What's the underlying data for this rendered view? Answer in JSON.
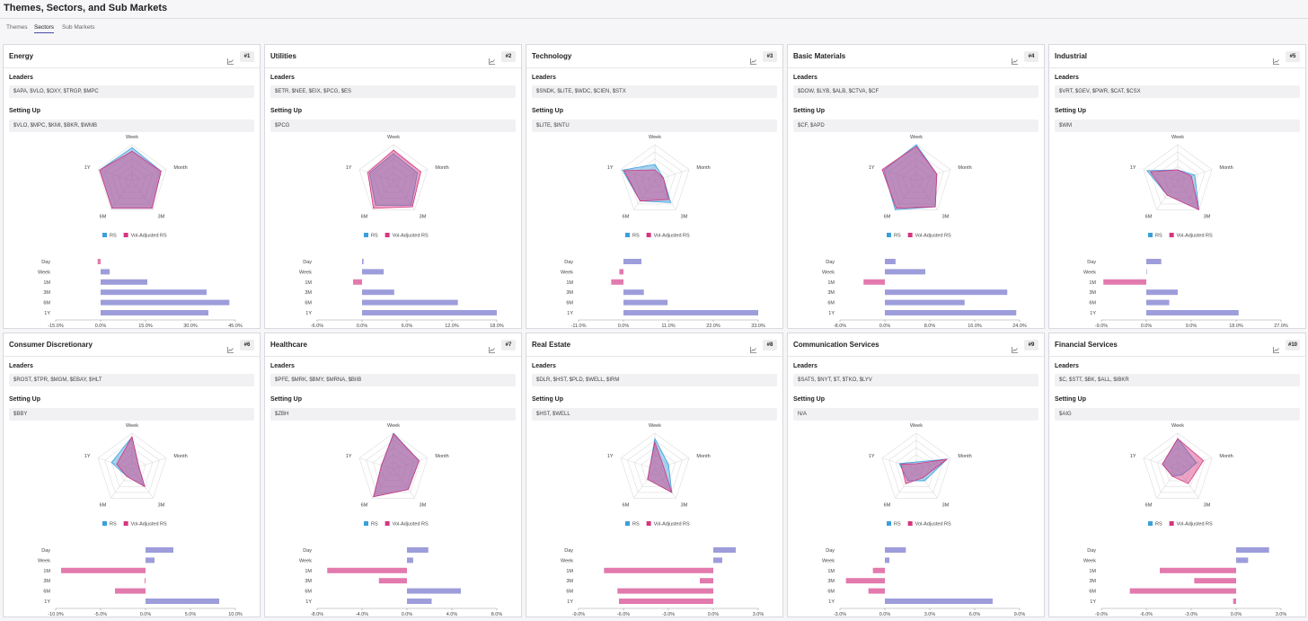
{
  "header": {
    "title": "Themes, Sectors, and Sub Markets"
  },
  "tabs": [
    "Themes",
    "Sectors",
    "Sub Markets"
  ],
  "active_tab": 1,
  "cards": [
    {
      "title": "Energy",
      "rank": "#1",
      "leaders_label": "Leaders",
      "leaders": "$APA, $VLO, $OXY, $TRGP, $MPC",
      "setup_label": "Setting Up",
      "setup": "$VLO, $MPC, $KMI, $BKR, $WMB",
      "charts": [
        {
          "type": "radar",
          "axes": [
            "Week",
            "Month",
            "3M",
            "6M",
            "1Y"
          ],
          "rlim": [
            0,
            100
          ],
          "series": [
            {
              "name": "RS",
              "color": "#3aa0dc",
              "values": [
                92,
                85,
                95,
                95,
                95
              ]
            },
            {
              "name": "Vol-Adjusted RS",
              "color": "#d6357f",
              "values": [
                82,
                85,
                95,
                95,
                95
              ]
            }
          ]
        },
        {
          "type": "bar",
          "categories": [
            "Day",
            "Week",
            "1M",
            "3M",
            "6M",
            "1Y"
          ],
          "values": [
            -1,
            3,
            15.6,
            35.4,
            43,
            36
          ],
          "xlim": [
            -15,
            45
          ],
          "xticks": [
            {
              "value": -15,
              "label": "-15.0%"
            },
            {
              "value": 0,
              "label": "0.0%"
            },
            {
              "value": 15,
              "label": "15.0%"
            },
            {
              "value": 30,
              "label": "30.0%"
            },
            {
              "value": 45,
              "label": "45.0%"
            }
          ],
          "positive_color": "#9d9ddb",
          "negative_color": "#e27aae"
        }
      ]
    },
    {
      "title": "Utilities",
      "rank": "#2",
      "leaders_label": "Leaders",
      "leaders": "$ETR, $NEE, $EIX, $PCG, $ES",
      "setup_label": "Setting Up",
      "setup": "$PCG",
      "charts": [
        {
          "type": "radar",
          "axes": [
            "Week",
            "Month",
            "3M",
            "6M",
            "1Y"
          ],
          "rlim": [
            0,
            100
          ],
          "series": [
            {
              "name": "RS",
              "color": "#3aa0dc",
              "values": [
                75,
                70,
                85,
                85,
                70
              ]
            },
            {
              "name": "Vol-Adjusted RS",
              "color": "#d6357f",
              "values": [
                85,
                80,
                90,
                95,
                75
              ]
            }
          ]
        },
        {
          "type": "bar",
          "categories": [
            "Day",
            "Week",
            "1M",
            "3M",
            "6M",
            "1Y"
          ],
          "values": [
            0.2,
            2.9,
            -1.2,
            4.3,
            12.8,
            18
          ],
          "xlim": [
            -6,
            18
          ],
          "xticks": [
            {
              "value": -6,
              "label": "-6.0%"
            },
            {
              "value": 0,
              "label": "0.0%"
            },
            {
              "value": 6,
              "label": "6.0%"
            },
            {
              "value": 12,
              "label": "12.0%"
            },
            {
              "value": 18,
              "label": "18.0%"
            }
          ],
          "positive_color": "#9d9ddb",
          "negative_color": "#e27aae"
        }
      ]
    },
    {
      "title": "Technology",
      "rank": "#3",
      "leaders_label": "Leaders",
      "leaders": "$SNDK, $LITE, $WDC, $CIEN, $STX",
      "setup_label": "Setting Up",
      "setup": "$LITE, $INTU",
      "charts": [
        {
          "type": "radar",
          "axes": [
            "Week",
            "Month",
            "3M",
            "6M",
            "1Y"
          ],
          "rlim": [
            0,
            100
          ],
          "series": [
            {
              "name": "RS",
              "color": "#3aa0dc",
              "values": [
                45,
                25,
                75,
                70,
                95
              ]
            },
            {
              "name": "Vol-Adjusted RS",
              "color": "#d6357f",
              "values": [
                30,
                25,
                65,
                70,
                90
              ]
            }
          ]
        },
        {
          "type": "bar",
          "categories": [
            "Day",
            "Week",
            "1M",
            "3M",
            "6M",
            "1Y"
          ],
          "values": [
            4.4,
            -1,
            -3,
            5,
            10.8,
            33
          ],
          "xlim": [
            -11,
            33
          ],
          "xticks": [
            {
              "value": -11,
              "label": "-11.0%"
            },
            {
              "value": 0,
              "label": "0.0%"
            },
            {
              "value": 11,
              "label": "11.0%"
            },
            {
              "value": 22,
              "label": "22.0%"
            },
            {
              "value": 33,
              "label": "33.0%"
            }
          ],
          "positive_color": "#9d9ddb",
          "negative_color": "#e27aae"
        }
      ]
    },
    {
      "title": "Basic Materials",
      "rank": "#4",
      "leaders_label": "Leaders",
      "leaders": "$DOW, $LYB, $ALB, $CTVA, $CF",
      "setup_label": "Setting Up",
      "setup": "$CF, $APD",
      "charts": [
        {
          "type": "radar",
          "axes": [
            "Week",
            "Month",
            "3M",
            "6M",
            "1Y"
          ],
          "rlim": [
            0,
            100
          ],
          "series": [
            {
              "name": "RS",
              "color": "#3aa0dc",
              "values": [
                100,
                60,
                90,
                100,
                95
              ]
            },
            {
              "name": "Vol-Adjusted RS",
              "color": "#d6357f",
              "values": [
                95,
                60,
                90,
                95,
                100
              ]
            }
          ]
        },
        {
          "type": "bar",
          "categories": [
            "Day",
            "Week",
            "1M",
            "3M",
            "6M",
            "1Y"
          ],
          "values": [
            1.9,
            7.2,
            -3.8,
            21.8,
            14.2,
            23.4
          ],
          "xlim": [
            -8,
            24
          ],
          "xticks": [
            {
              "value": -8,
              "label": "-8.0%"
            },
            {
              "value": 0,
              "label": "0.0%"
            },
            {
              "value": 8,
              "label": "8.0%"
            },
            {
              "value": 16,
              "label": "16.0%"
            },
            {
              "value": 24,
              "label": "24.0%"
            }
          ],
          "positive_color": "#9d9ddb",
          "negative_color": "#e27aae"
        }
      ]
    },
    {
      "title": "Industrial",
      "rank": "#5",
      "leaders_label": "Leaders",
      "leaders": "$VRT, $GEV, $PWR, $CAT, $CSX",
      "setup_label": "Setting Up",
      "setup": "$WM",
      "charts": [
        {
          "type": "radar",
          "axes": [
            "Week",
            "Month",
            "3M",
            "6M",
            "1Y"
          ],
          "rlim": [
            0,
            100
          ],
          "series": [
            {
              "name": "RS",
              "color": "#3aa0dc",
              "values": [
                30,
                50,
                100,
                50,
                90
              ]
            },
            {
              "name": "Vol-Adjusted RS",
              "color": "#d6357f",
              "values": [
                30,
                40,
                100,
                50,
                80
              ]
            }
          ]
        },
        {
          "type": "bar",
          "categories": [
            "Day",
            "Week",
            "1M",
            "3M",
            "6M",
            "1Y"
          ],
          "values": [
            3,
            0.1,
            -8.6,
            6.3,
            4.6,
            18.5
          ],
          "xlim": [
            -9,
            27
          ],
          "xticks": [
            {
              "value": -9,
              "label": "-9.0%"
            },
            {
              "value": 0,
              "label": "0.0%"
            },
            {
              "value": 9,
              "label": "9.0%"
            },
            {
              "value": 18,
              "label": "18.0%"
            },
            {
              "value": 27,
              "label": "27.0%"
            }
          ],
          "positive_color": "#9d9ddb",
          "negative_color": "#e27aae"
        }
      ]
    },
    {
      "title": "Consumer Discretionary",
      "rank": "#6",
      "leaders_label": "Leaders",
      "leaders": "$ROST, $TPR, $MGM, $EBAY, $HLT",
      "setup_label": "Setting Up",
      "setup": "$BBY",
      "charts": [
        {
          "type": "radar",
          "axes": [
            "Week",
            "Month",
            "3M",
            "6M",
            "1Y"
          ],
          "rlim": [
            0,
            100
          ],
          "series": [
            {
              "name": "RS",
              "color": "#3aa0dc",
              "values": [
                90,
                20,
                60,
                25,
                60
              ]
            },
            {
              "name": "Vol-Adjusted RS",
              "color": "#d6357f",
              "values": [
                90,
                20,
                60,
                25,
                45
              ]
            }
          ]
        },
        {
          "type": "bar",
          "categories": [
            "Day",
            "Week",
            "1M",
            "3M",
            "6M",
            "1Y"
          ],
          "values": [
            3.1,
            1,
            -9.4,
            -0.1,
            -3.4,
            8.2
          ],
          "xlim": [
            -10,
            10
          ],
          "xticks": [
            {
              "value": -10,
              "label": "-10.0%"
            },
            {
              "value": -5,
              "label": "-5.0%"
            },
            {
              "value": 0,
              "label": "0.0%"
            },
            {
              "value": 5,
              "label": "5.0%"
            },
            {
              "value": 10,
              "label": "10.0%"
            }
          ],
          "positive_color": "#9d9ddb",
          "negative_color": "#e27aae"
        }
      ]
    },
    {
      "title": "Healthcare",
      "rank": "#7",
      "leaders_label": "Leaders",
      "leaders": "$PFE, $MRK, $BMY, $MRNA, $BIIB",
      "setup_label": "Setting Up",
      "setup": "$ZBH",
      "charts": [
        {
          "type": "radar",
          "axes": [
            "Week",
            "Month",
            "3M",
            "6M",
            "1Y"
          ],
          "rlim": [
            0,
            100
          ],
          "series": [
            {
              "name": "RS",
              "color": "#3aa0dc",
              "values": [
                100,
                75,
                70,
                95,
                35
              ]
            },
            {
              "name": "Vol-Adjusted RS",
              "color": "#d6357f",
              "values": [
                98,
                75,
                70,
                95,
                35
              ]
            }
          ]
        },
        {
          "type": "bar",
          "categories": [
            "Day",
            "Week",
            "1M",
            "3M",
            "6M",
            "1Y"
          ],
          "values": [
            1.9,
            0.55,
            -7.1,
            -2.5,
            4.8,
            2.2
          ],
          "xlim": [
            -8,
            8
          ],
          "xticks": [
            {
              "value": -8,
              "label": "-8.0%"
            },
            {
              "value": -4,
              "label": "-4.0%"
            },
            {
              "value": 0,
              "label": "0.0%"
            },
            {
              "value": 4,
              "label": "4.0%"
            },
            {
              "value": 8,
              "label": "8.0%"
            }
          ],
          "positive_color": "#9d9ddb",
          "negative_color": "#e27aae"
        }
      ]
    },
    {
      "title": "Real Estate",
      "rank": "#8",
      "leaders_label": "Leaders",
      "leaders": "$DLR, $HST, $PLD, $WELL, $IRM",
      "setup_label": "Setting Up",
      "setup": "$HST, $WELL",
      "charts": [
        {
          "type": "radar",
          "axes": [
            "Week",
            "Month",
            "3M",
            "6M",
            "1Y"
          ],
          "rlim": [
            0,
            100
          ],
          "series": [
            {
              "name": "RS",
              "color": "#3aa0dc",
              "values": [
                85,
                40,
                80,
                35,
                15
              ]
            },
            {
              "name": "Vol-Adjusted RS",
              "color": "#d6357f",
              "values": [
                75,
                25,
                80,
                35,
                15
              ]
            }
          ]
        },
        {
          "type": "bar",
          "categories": [
            "Day",
            "Week",
            "1M",
            "3M",
            "6M",
            "1Y"
          ],
          "values": [
            1.5,
            0.6,
            -7.3,
            -0.9,
            -6.4,
            -6.3
          ],
          "xlim": [
            -9,
            3
          ],
          "xticks": [
            {
              "value": -9,
              "label": "-9.0%"
            },
            {
              "value": -6,
              "label": "-6.0%"
            },
            {
              "value": -3,
              "label": "-3.0%"
            },
            {
              "value": 0,
              "label": "0.0%"
            },
            {
              "value": 3,
              "label": "3.0%"
            }
          ],
          "positive_color": "#9d9ddb",
          "negative_color": "#e27aae"
        }
      ]
    },
    {
      "title": "Communication Services",
      "rank": "#9",
      "leaders_label": "Leaders",
      "leaders": "$SATS, $NYT, $T, $TKO, $LYV",
      "setup_label": "Setting Up",
      "setup": "N/A",
      "charts": [
        {
          "type": "radar",
          "axes": [
            "Week",
            "Month",
            "3M",
            "6M",
            "1Y"
          ],
          "rlim": [
            0,
            100
          ],
          "series": [
            {
              "name": "RS",
              "color": "#3aa0dc",
              "values": [
                20,
                90,
                40,
                40,
                50
              ]
            },
            {
              "name": "Vol-Adjusted RS",
              "color": "#d6357f",
              "values": [
                15,
                90,
                30,
                50,
                45
              ]
            }
          ]
        },
        {
          "type": "bar",
          "categories": [
            "Day",
            "Week",
            "1M",
            "3M",
            "6M",
            "1Y"
          ],
          "values": [
            1.4,
            0.3,
            -0.8,
            -2.6,
            -1.1,
            7.2
          ],
          "xlim": [
            -3,
            9
          ],
          "xticks": [
            {
              "value": -3,
              "label": "-3.0%"
            },
            {
              "value": 0,
              "label": "0.0%"
            },
            {
              "value": 3,
              "label": "3.0%"
            },
            {
              "value": 6,
              "label": "6.0%"
            },
            {
              "value": 9,
              "label": "9.0%"
            }
          ],
          "positive_color": "#9d9ddb",
          "negative_color": "#e27aae"
        }
      ]
    },
    {
      "title": "Financial Services",
      "rank": "#10",
      "leaders_label": "Leaders",
      "leaders": "$C, $STT, $BK, $ALL, $IBKR",
      "setup_label": "Setting Up",
      "setup": "$AIG",
      "charts": [
        {
          "type": "radar",
          "axes": [
            "Week",
            "Month",
            "3M",
            "6M",
            "1Y"
          ],
          "rlim": [
            0,
            100
          ],
          "series": [
            {
              "name": "RS",
              "color": "#3aa0dc",
              "values": [
                85,
                55,
                20,
                25,
                45
              ]
            },
            {
              "name": "Vol-Adjusted RS",
              "color": "#d6357f",
              "values": [
                85,
                75,
                50,
                25,
                45
              ]
            }
          ]
        },
        {
          "type": "bar",
          "categories": [
            "Day",
            "Week",
            "1M",
            "3M",
            "6M",
            "1Y"
          ],
          "values": [
            2.2,
            0.8,
            -5.1,
            -2.8,
            -7.1,
            -0.2
          ],
          "xlim": [
            -9,
            3
          ],
          "xticks": [
            {
              "value": -9,
              "label": "-9.0%"
            },
            {
              "value": -6,
              "label": "-6.0%"
            },
            {
              "value": -3,
              "label": "-3.0%"
            },
            {
              "value": 0,
              "label": "0.0%"
            },
            {
              "value": 3,
              "label": "3.0%"
            }
          ],
          "positive_color": "#9d9ddb",
          "negative_color": "#e27aae"
        }
      ]
    }
  ]
}
